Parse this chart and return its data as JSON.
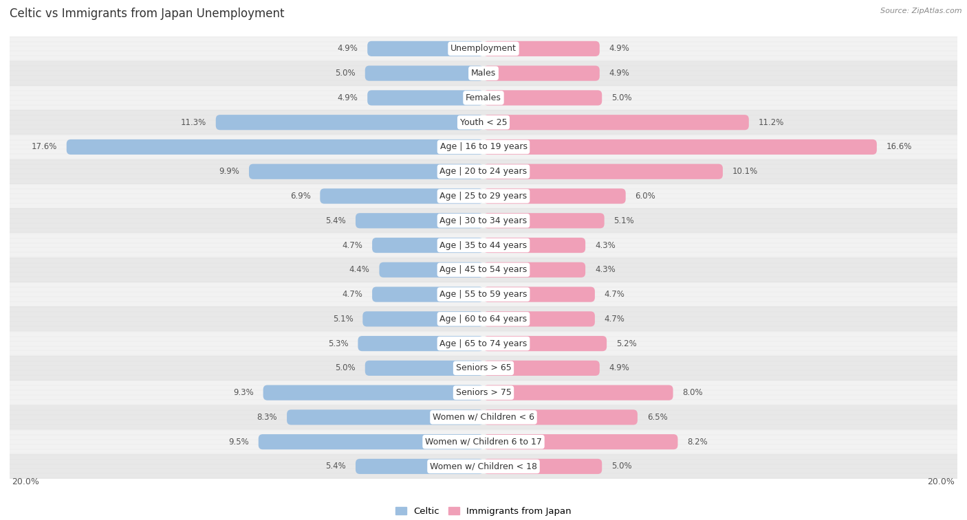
{
  "title": "Celtic vs Immigrants from Japan Unemployment",
  "source": "Source: ZipAtlas.com",
  "categories": [
    "Unemployment",
    "Males",
    "Females",
    "Youth < 25",
    "Age | 16 to 19 years",
    "Age | 20 to 24 years",
    "Age | 25 to 29 years",
    "Age | 30 to 34 years",
    "Age | 35 to 44 years",
    "Age | 45 to 54 years",
    "Age | 55 to 59 years",
    "Age | 60 to 64 years",
    "Age | 65 to 74 years",
    "Seniors > 65",
    "Seniors > 75",
    "Women w/ Children < 6",
    "Women w/ Children 6 to 17",
    "Women w/ Children < 18"
  ],
  "celtic_values": [
    4.9,
    5.0,
    4.9,
    11.3,
    17.6,
    9.9,
    6.9,
    5.4,
    4.7,
    4.4,
    4.7,
    5.1,
    5.3,
    5.0,
    9.3,
    8.3,
    9.5,
    5.4
  ],
  "japan_values": [
    4.9,
    4.9,
    5.0,
    11.2,
    16.6,
    10.1,
    6.0,
    5.1,
    4.3,
    4.3,
    4.7,
    4.7,
    5.2,
    4.9,
    8.0,
    6.5,
    8.2,
    5.0
  ],
  "celtic_color": "#9dbfe0",
  "japan_color": "#f0a0b8",
  "bg_light": "#f2f2f2",
  "bg_dark": "#e8e8e8",
  "stripe_color": "#d8d8d8",
  "max_value": 20.0,
  "legend_celtic": "Celtic",
  "legend_japan": "Immigrants from Japan",
  "label_fontsize": 8.5,
  "cat_fontsize": 9.0,
  "title_fontsize": 12,
  "bar_height": 0.62
}
